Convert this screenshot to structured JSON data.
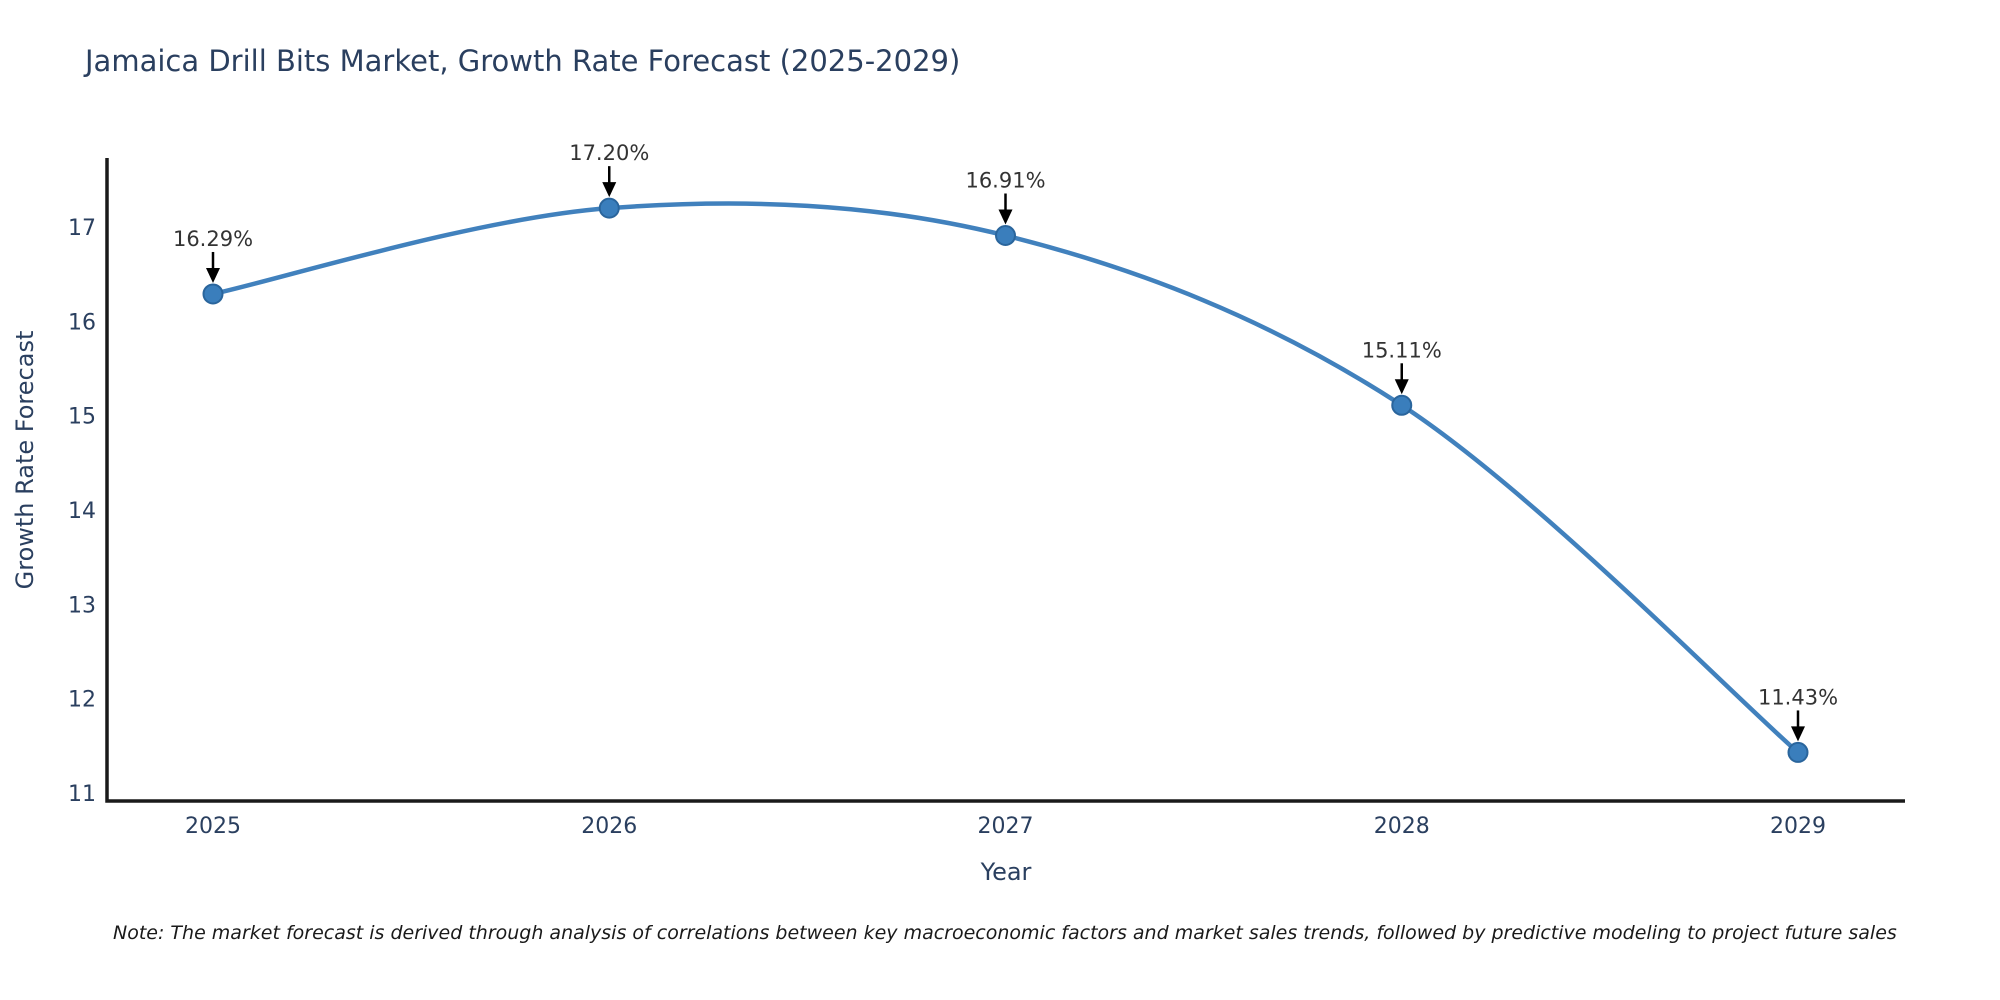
{
  "title": "Jamaica Drill Bits Market, Growth Rate Forecast (2025-2029)",
  "note": "Note: The market forecast is derived through analysis of correlations between key macroeconomic factors and market sales trends, followed by predictive modeling to project future sales",
  "chart_data": {
    "type": "line",
    "title": "Jamaica Drill Bits Market, Growth Rate Forecast (2025-2029)",
    "xlabel": "Year",
    "ylabel": "Growth Rate Forecast",
    "x": [
      2025,
      2026,
      2027,
      2028,
      2029
    ],
    "series": [
      {
        "name": "Growth Rate Forecast",
        "values": [
          16.29,
          17.2,
          16.91,
          15.11,
          11.43
        ]
      }
    ],
    "point_labels": [
      "16.29%",
      "17.20%",
      "16.91%",
      "15.11%",
      "11.43%"
    ],
    "xticks": [
      "2025",
      "2026",
      "2027",
      "2028",
      "2029"
    ],
    "yticks": [
      11,
      12,
      13,
      14,
      15,
      16,
      17
    ],
    "ylim": [
      10.92,
      17.73
    ],
    "xlim": [
      2024.73,
      2029.27
    ],
    "line_shape": "spline",
    "grid": false,
    "legend": "none",
    "annotations_style": "black down-arrows pointing at markers",
    "colors": {
      "line": "#4181bd",
      "marker_fill": "#3a7ebc",
      "marker_edge": "#2a659c",
      "axis": "#1a1a1a",
      "tick_text": "#2a3f5f",
      "axis_title_text": "#2a3f5f",
      "title_text": "#2a3f5f",
      "annotation_text": "#333333",
      "arrow": "#000000",
      "background": "#ffffff"
    }
  }
}
